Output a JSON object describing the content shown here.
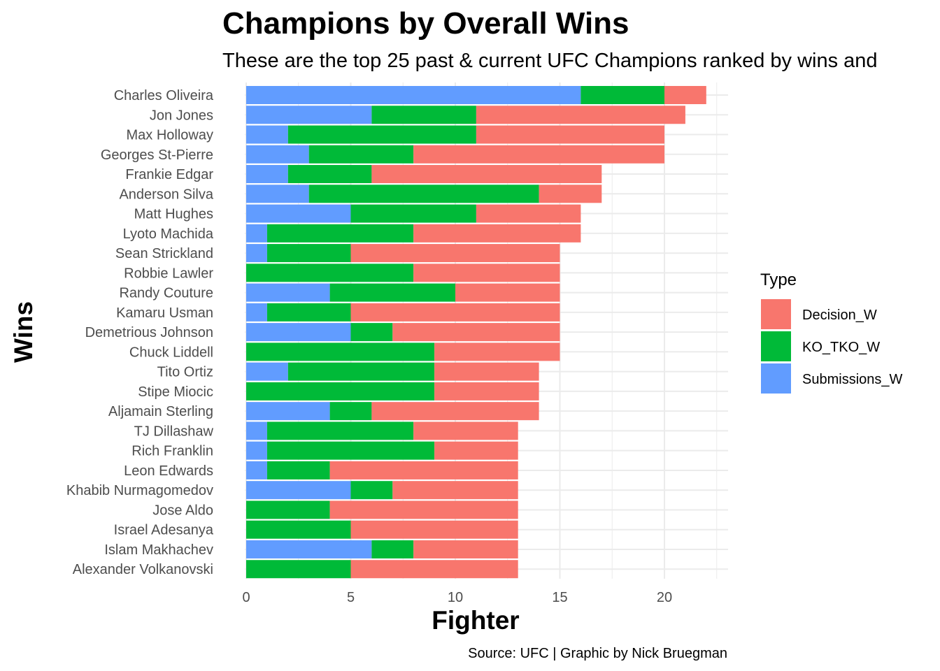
{
  "chart_data": {
    "type": "bar",
    "orientation": "horizontal",
    "stacked": true,
    "title": "Champions by Overall Wins",
    "subtitle": "These are the top 25 past & current UFC Champions ranked by wins and",
    "xlabel": "Fighter",
    "ylabel": "Wins",
    "caption": "Source: UFC | Graphic by Nick Bruegman",
    "xlim": [
      0,
      23
    ],
    "xticks": [
      0,
      5,
      10,
      15,
      20
    ],
    "grid": true,
    "legend": {
      "title": "Type",
      "position": "right"
    },
    "categories": [
      "Charles Oliveira",
      "Jon Jones",
      "Max Holloway",
      "Georges St-Pierre",
      "Frankie Edgar",
      "Anderson Silva",
      "Matt Hughes",
      "Lyoto Machida",
      "Sean Strickland",
      "Robbie Lawler",
      "Randy Couture",
      "Kamaru Usman",
      "Demetrious Johnson",
      "Chuck Liddell",
      "Tito Ortiz",
      "Stipe Miocic",
      "Aljamain Sterling",
      "TJ Dillashaw",
      "Rich Franklin",
      "Leon Edwards",
      "Khabib Nurmagomedov",
      "Jose Aldo",
      "Israel Adesanya",
      "Islam Makhachev",
      "Alexander Volkanovski"
    ],
    "series": [
      {
        "name": "Submissions_W",
        "color": "#619CFF",
        "values": [
          16,
          6,
          2,
          3,
          2,
          3,
          5,
          1,
          1,
          0,
          4,
          1,
          5,
          0,
          2,
          0,
          4,
          1,
          1,
          1,
          5,
          0,
          0,
          6,
          0
        ]
      },
      {
        "name": "KO_TKO_W",
        "color": "#00BA38",
        "values": [
          4,
          5,
          9,
          5,
          4,
          11,
          6,
          7,
          4,
          8,
          6,
          4,
          2,
          9,
          7,
          9,
          2,
          7,
          8,
          3,
          2,
          4,
          5,
          2,
          5
        ]
      },
      {
        "name": "Decision_W",
        "color": "#F8766D",
        "values": [
          2,
          10,
          9,
          12,
          11,
          3,
          5,
          8,
          10,
          7,
          5,
          10,
          8,
          6,
          5,
          5,
          8,
          5,
          4,
          9,
          6,
          9,
          8,
          5,
          8
        ]
      }
    ],
    "legend_order": [
      "Decision_W",
      "KO_TKO_W",
      "Submissions_W"
    ]
  }
}
